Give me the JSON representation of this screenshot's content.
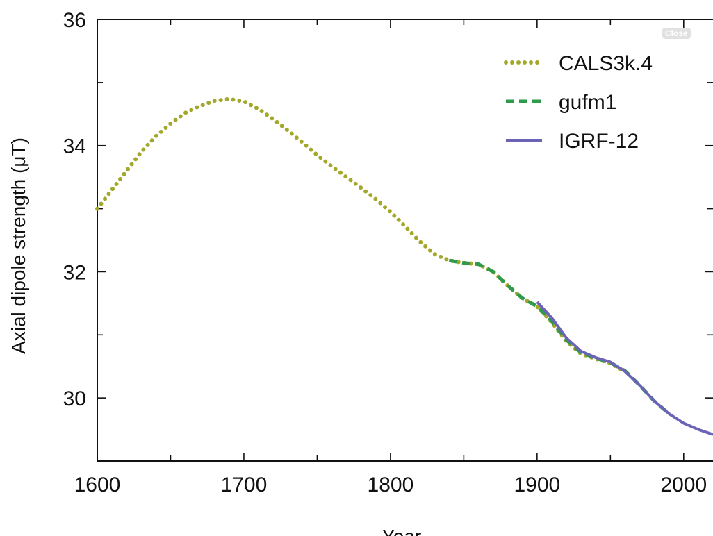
{
  "close_label": "Close",
  "chart_data": {
    "type": "line",
    "xlabel": "Year",
    "ylabel": "Axial dipole strength (μT)",
    "xlim": [
      1600,
      2020
    ],
    "ylim": [
      29,
      36
    ],
    "xticks": [
      1600,
      1700,
      1800,
      1900,
      2000
    ],
    "yticks": [
      30,
      32,
      34,
      36
    ],
    "minor_x_step": 50,
    "minor_y_step": 1,
    "grid": false,
    "legend_position": "top-right",
    "series": [
      {
        "name": "CALS3k.4",
        "style": "dotted",
        "color": "#a3a82a",
        "x": [
          1600,
          1610,
          1620,
          1630,
          1640,
          1650,
          1660,
          1670,
          1680,
          1690,
          1700,
          1710,
          1720,
          1730,
          1740,
          1750,
          1760,
          1770,
          1780,
          1790,
          1800,
          1810,
          1820,
          1830,
          1840,
          1850,
          1860,
          1870,
          1880,
          1890,
          1900,
          1910,
          1920,
          1930,
          1940,
          1950,
          1960
        ],
        "values": [
          33.0,
          33.3,
          33.6,
          33.9,
          34.15,
          34.35,
          34.52,
          34.63,
          34.71,
          34.74,
          34.7,
          34.58,
          34.42,
          34.24,
          34.05,
          33.85,
          33.67,
          33.5,
          33.33,
          33.15,
          32.95,
          32.72,
          32.48,
          32.28,
          32.18,
          32.14,
          32.12,
          32.0,
          31.78,
          31.58,
          31.45,
          31.2,
          30.9,
          30.7,
          30.62,
          30.55,
          30.42
        ]
      },
      {
        "name": "gufm1",
        "style": "dashed",
        "color": "#2e9a4a",
        "x": [
          1840,
          1850,
          1860,
          1870,
          1880,
          1890,
          1900,
          1910,
          1920,
          1930,
          1940,
          1950,
          1960,
          1970,
          1980,
          1990
        ],
        "values": [
          32.18,
          32.14,
          32.12,
          32.0,
          31.78,
          31.58,
          31.45,
          31.22,
          30.92,
          30.72,
          30.63,
          30.56,
          30.43,
          30.2,
          29.95,
          29.75
        ]
      },
      {
        "name": "IGRF-12",
        "style": "solid",
        "color": "#6b63b5",
        "x": [
          1900,
          1910,
          1920,
          1930,
          1940,
          1950,
          1960,
          1970,
          1980,
          1990,
          2000,
          2010,
          2020
        ],
        "values": [
          31.52,
          31.27,
          30.95,
          30.74,
          30.64,
          30.57,
          30.42,
          30.2,
          29.95,
          29.75,
          29.6,
          29.5,
          29.42
        ]
      }
    ]
  }
}
